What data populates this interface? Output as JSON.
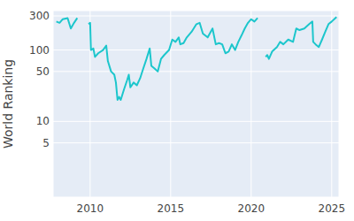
{
  "chart_data": {
    "type": "line",
    "y_label": "World Ranking",
    "log": "y",
    "grid": true,
    "color": "#1cc6cc",
    "xlim": [
      2007.7,
      2025.45
    ],
    "xticks": [
      2010,
      2015,
      2020,
      2025
    ],
    "ylim": [
      0.87,
      356
    ],
    "yticks": [
      5,
      10,
      50,
      100,
      300
    ],
    "x": [
      2007.9,
      2008.1,
      2008.3,
      2008.6,
      2008.8,
      2009.0,
      2009.2,
      2009.5,
      2009.9,
      2010.0,
      2010.05,
      2010.2,
      2010.3,
      2010.5,
      2010.8,
      2011.0,
      2011.1,
      2011.3,
      2011.5,
      2011.6,
      2011.7,
      2011.8,
      2011.9,
      2012.1,
      2012.3,
      2012.4,
      2012.5,
      2012.7,
      2012.9,
      2013.1,
      2013.3,
      2013.5,
      2013.7,
      2013.8,
      2014.0,
      2014.2,
      2014.4,
      2014.6,
      2014.9,
      2015.1,
      2015.3,
      2015.5,
      2015.6,
      2015.8,
      2016.0,
      2016.3,
      2016.6,
      2016.8,
      2017.0,
      2017.3,
      2017.6,
      2017.8,
      2018.0,
      2018.2,
      2018.4,
      2018.6,
      2018.8,
      2019.0,
      2019.2,
      2019.4,
      2019.6,
      2019.8,
      2020.0,
      2020.2,
      2020.4,
      2020.6,
      2020.9,
      2021.0,
      2021.1,
      2021.3,
      2021.6,
      2021.8,
      2022.0,
      2022.3,
      2022.6,
      2022.8,
      2023.0,
      2023.3,
      2023.6,
      2023.8,
      2023.85,
      2024.0,
      2024.2,
      2024.4,
      2024.6,
      2024.8,
      2025.0,
      2025.3
    ],
    "values": [
      250,
      240,
      270,
      280,
      200,
      240,
      280,
      null,
      230,
      240,
      100,
      105,
      80,
      90,
      100,
      115,
      70,
      50,
      45,
      35,
      20,
      22,
      20,
      28,
      38,
      45,
      30,
      35,
      32,
      40,
      55,
      75,
      105,
      60,
      55,
      50,
      75,
      85,
      100,
      140,
      130,
      150,
      120,
      125,
      150,
      180,
      230,
      240,
      170,
      150,
      200,
      120,
      125,
      120,
      90,
      95,
      120,
      100,
      130,
      160,
      200,
      240,
      270,
      250,
      280,
      null,
      80,
      85,
      75,
      95,
      110,
      130,
      120,
      140,
      130,
      200,
      190,
      200,
      230,
      250,
      130,
      120,
      110,
      140,
      180,
      230,
      250,
      290
    ]
  }
}
